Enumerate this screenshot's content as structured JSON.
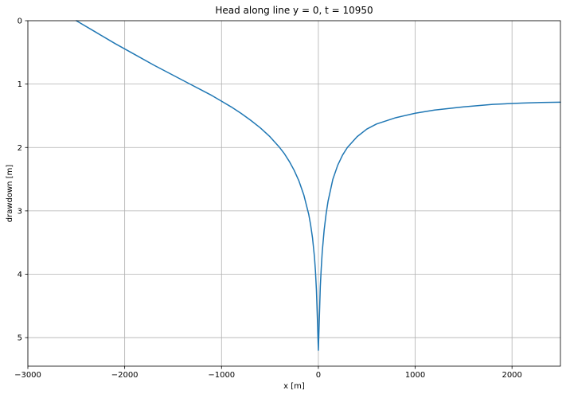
{
  "chart_data": {
    "type": "line",
    "title": "Head along line y = 0, t = 10950",
    "xlabel": "x [m]",
    "ylabel": "drawdown [m]",
    "xlim": [
      -3000,
      2500
    ],
    "ylim": [
      0,
      5.45
    ],
    "y_inverted": true,
    "grid": true,
    "x_ticks": [
      -3000,
      -2000,
      -1000,
      0,
      1000,
      2000
    ],
    "x_tick_labels": [
      "−3000",
      "−2000",
      "−1000",
      "0",
      "1000",
      "2000"
    ],
    "y_ticks": [
      0,
      1,
      2,
      3,
      4,
      5
    ],
    "y_tick_labels": [
      "0",
      "1",
      "2",
      "3",
      "4",
      "5"
    ],
    "colors": {
      "series": "#1f77b4",
      "grid": "#b0b0b0"
    },
    "series": [
      {
        "x": [
          -2500,
          -2300,
          -2100,
          -1900,
          -1700,
          -1500,
          -1300,
          -1100,
          -1000,
          -900,
          -800,
          -700,
          -600,
          -500,
          -400,
          -350,
          -300,
          -250,
          -200,
          -150,
          -100,
          -80,
          -60,
          -40,
          -30,
          -20,
          -10,
          0,
          10,
          20,
          30,
          40,
          60,
          80,
          100,
          150,
          200,
          250,
          300,
          400,
          500,
          600,
          800,
          1000,
          1200,
          1500,
          1800,
          2100,
          2300,
          2500
        ],
        "y": [
          0.0,
          0.18,
          0.36,
          0.53,
          0.7,
          0.86,
          1.02,
          1.18,
          1.27,
          1.36,
          1.46,
          1.57,
          1.69,
          1.83,
          2.0,
          2.1,
          2.22,
          2.36,
          2.53,
          2.75,
          3.05,
          3.22,
          3.43,
          3.73,
          3.95,
          4.25,
          4.7,
          5.2,
          4.7,
          4.2,
          3.9,
          3.65,
          3.3,
          3.05,
          2.85,
          2.5,
          2.28,
          2.12,
          2.0,
          1.83,
          1.71,
          1.63,
          1.53,
          1.46,
          1.41,
          1.36,
          1.32,
          1.3,
          1.29,
          1.285
        ]
      }
    ]
  }
}
